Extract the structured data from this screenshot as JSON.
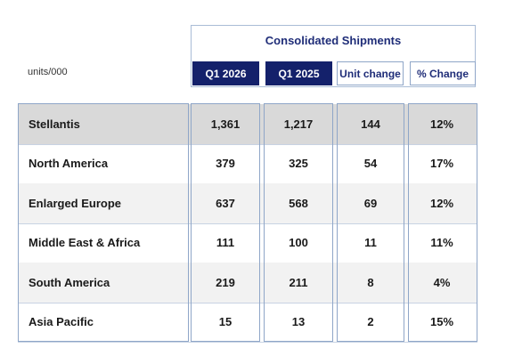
{
  "unit_label": "units/000",
  "header": {
    "title": "Consolidated Shipments",
    "columns": [
      "Q1 2026",
      "Q1 2025",
      "Unit change",
      "% Change"
    ]
  },
  "rows": [
    {
      "name": "Stellantis",
      "values": [
        "1,361",
        "1,217",
        "144",
        "12%"
      ],
      "style": "total"
    },
    {
      "name": "North America",
      "values": [
        "379",
        "325",
        "54",
        "17%"
      ],
      "style": "plain"
    },
    {
      "name": "Enlarged Europe",
      "values": [
        "637",
        "568",
        "69",
        "12%"
      ],
      "style": "shade"
    },
    {
      "name": "Middle East & Africa",
      "values": [
        "111",
        "100",
        "11",
        "11%"
      ],
      "style": "plain"
    },
    {
      "name": "South America",
      "values": [
        "219",
        "211",
        "8",
        "4%"
      ],
      "style": "shade"
    },
    {
      "name": "Asia Pacific",
      "values": [
        "15",
        "13",
        "2",
        "15%"
      ],
      "style": "plain"
    }
  ],
  "colors": {
    "header_dark": "#14216b",
    "header_text": "#1f2d78",
    "total_row": "#d9d9d9",
    "shaded_row": "#f2f2f2",
    "border": "#8fa6c8"
  }
}
